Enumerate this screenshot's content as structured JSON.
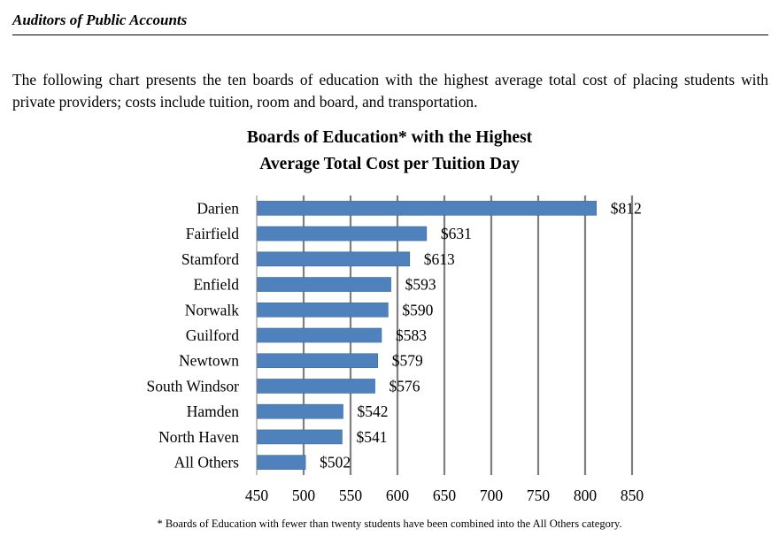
{
  "header": {
    "text": "Auditors of Public Accounts"
  },
  "intro": {
    "text": "The following chart presents the ten boards of education with the highest average total cost of placing students with private providers; costs include tuition, room and board, and transportation."
  },
  "footnote": {
    "text": "* Boards of Education with fewer than twenty students have been combined into the All Others category."
  },
  "colors": {
    "bar": "#4f81bd",
    "grid": "#7f7f7f"
  },
  "chart_data": {
    "type": "bar",
    "orientation": "horizontal",
    "title_line1": "Boards of Education* with the Highest",
    "title_line2": "Average Total Cost per Tuition Day",
    "categories": [
      "Darien",
      "Fairfield",
      "Stamford",
      "Enfield",
      "Norwalk",
      "Guilford",
      "Newtown",
      "South Windsor",
      "Hamden",
      "North Haven",
      "All Others"
    ],
    "values": [
      812,
      631,
      613,
      593,
      590,
      583,
      579,
      576,
      542,
      541,
      502
    ],
    "value_labels": [
      "$812",
      "$631",
      "$613",
      "$593",
      "$590",
      "$583",
      "$579",
      "$576",
      "$542",
      "$541",
      "$502"
    ],
    "xlim": [
      450,
      850
    ],
    "xticks": [
      450,
      500,
      550,
      600,
      650,
      700,
      750,
      800,
      850
    ],
    "grid": "vertical",
    "legend": "none"
  }
}
